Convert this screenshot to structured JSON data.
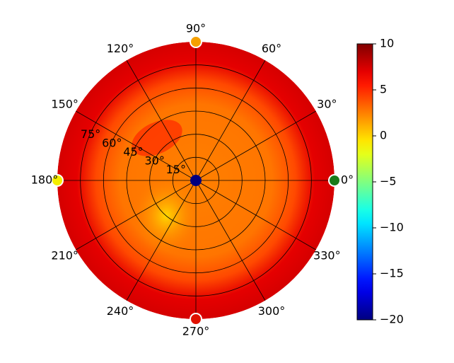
{
  "chart_data": {
    "type": "heatmap",
    "projection": "polar",
    "title": "",
    "angular_ticks": [
      {
        "angle": 0,
        "label": "0°"
      },
      {
        "angle": 30,
        "label": "30°"
      },
      {
        "angle": 60,
        "label": "60°"
      },
      {
        "angle": 90,
        "label": "90°"
      },
      {
        "angle": 120,
        "label": "120°"
      },
      {
        "angle": 150,
        "label": "150°"
      },
      {
        "angle": 180,
        "label": "180°"
      },
      {
        "angle": 210,
        "label": "210°"
      },
      {
        "angle": 240,
        "label": "240°"
      },
      {
        "angle": 270,
        "label": "270°"
      },
      {
        "angle": 300,
        "label": "300°"
      },
      {
        "angle": 330,
        "label": "330°"
      }
    ],
    "radial_ticks": [
      {
        "value": 15,
        "label": "15°"
      },
      {
        "value": 30,
        "label": "30°"
      },
      {
        "value": 45,
        "label": "45°"
      },
      {
        "value": 60,
        "label": "60°"
      },
      {
        "value": 75,
        "label": "75°"
      }
    ],
    "radial_max": 90,
    "colorbar": {
      "colormap": "jet",
      "vmin": -20,
      "vmax": 10,
      "ticks": [
        {
          "value": 10,
          "label": "10"
        },
        {
          "value": 5,
          "label": "5"
        },
        {
          "value": 0,
          "label": "0"
        },
        {
          "value": -5,
          "label": "−5"
        },
        {
          "value": -10,
          "label": "−10"
        },
        {
          "value": -15,
          "label": "−15"
        },
        {
          "value": -20,
          "label": "−20"
        }
      ]
    },
    "field": {
      "rim_value": 7.5,
      "core_value": 2.5,
      "low_spot": {
        "theta": 230,
        "r": 30,
        "value": -1
      },
      "center_value": -20
    },
    "markers": [
      {
        "theta": 0,
        "r": 90,
        "value": -6,
        "color": "#1a7a1a"
      },
      {
        "theta": 90,
        "r": 90,
        "value": 4,
        "color": "#f5a000"
      },
      {
        "theta": 180,
        "r": 90,
        "value": 0,
        "color": "#f5ee00"
      },
      {
        "theta": 270,
        "r": 90,
        "value": 7,
        "color": "#e01000"
      }
    ]
  }
}
